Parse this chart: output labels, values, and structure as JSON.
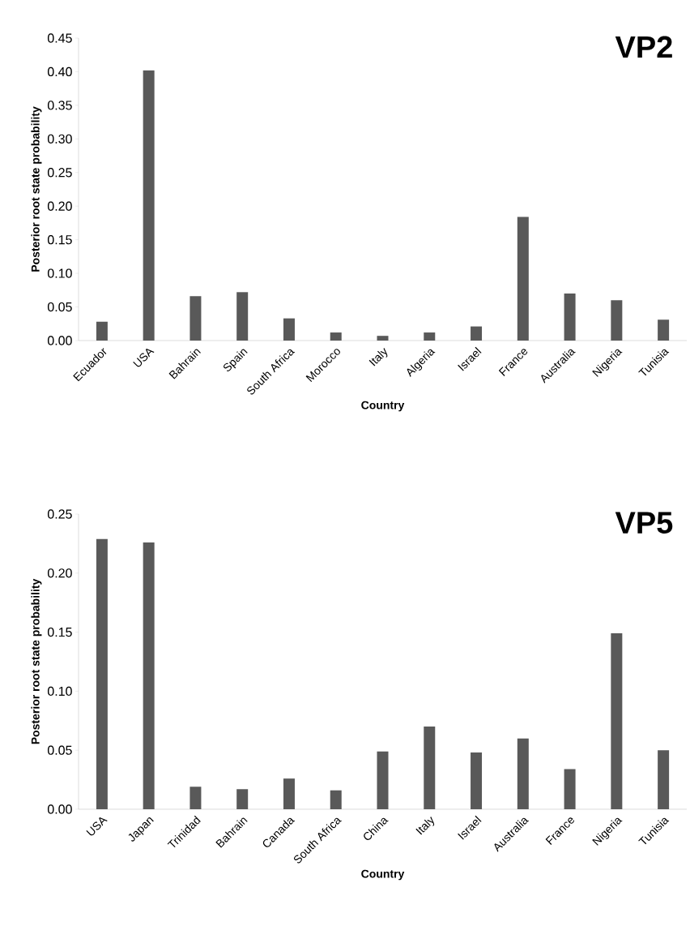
{
  "chart_data": [
    {
      "type": "bar",
      "title": "VP2",
      "xlabel": "Country",
      "ylabel": "Posterior root state probability",
      "categories": [
        "Ecuador",
        "USA",
        "Bahrain",
        "Spain",
        "South Africa",
        "Morocco",
        "Italy",
        "Algeria",
        "Israel",
        "France",
        "Australia",
        "Nigeria",
        "Tunisia"
      ],
      "values": [
        0.028,
        0.402,
        0.066,
        0.072,
        0.033,
        0.012,
        0.007,
        0.012,
        0.021,
        0.184,
        0.07,
        0.06,
        0.031
      ],
      "color": "#595959",
      "ylim": [
        0,
        0.45
      ],
      "yticks": [
        {
          "value": 0,
          "label": "0.00"
        },
        {
          "value": 0.05,
          "label": "0.05"
        },
        {
          "value": 0.1,
          "label": "0.10"
        },
        {
          "value": 0.15,
          "label": "0.15"
        },
        {
          "value": 0.2,
          "label": "0.20"
        },
        {
          "value": 0.25,
          "label": "0.25"
        },
        {
          "value": 0.3,
          "label": "0.30"
        },
        {
          "value": 0.35,
          "label": "0.35"
        },
        {
          "value": 0.4,
          "label": "0.40"
        },
        {
          "value": 0.45,
          "label": "0.45"
        }
      ]
    },
    {
      "type": "bar",
      "title": "VP5",
      "xlabel": "Country",
      "ylabel": "Posterior root state probability",
      "categories": [
        "USA",
        "Japan",
        "Trinidad",
        "Bahrain",
        "Canada",
        "South Africa",
        "China",
        "Italy",
        "Israel",
        "Australia",
        "France",
        "Nigeria",
        "Tunisia"
      ],
      "values": [
        0.229,
        0.226,
        0.019,
        0.017,
        0.026,
        0.016,
        0.049,
        0.07,
        0.048,
        0.06,
        0.034,
        0.149,
        0.05
      ],
      "color": "#595959",
      "ylim": [
        0,
        0.25
      ],
      "yticks": [
        {
          "value": 0,
          "label": "0.00"
        },
        {
          "value": 0.05,
          "label": "0.05"
        },
        {
          "value": 0.1,
          "label": "0.10"
        },
        {
          "value": 0.15,
          "label": "0.15"
        },
        {
          "value": 0.2,
          "label": "0.20"
        },
        {
          "value": 0.25,
          "label": "0.25"
        }
      ]
    }
  ]
}
